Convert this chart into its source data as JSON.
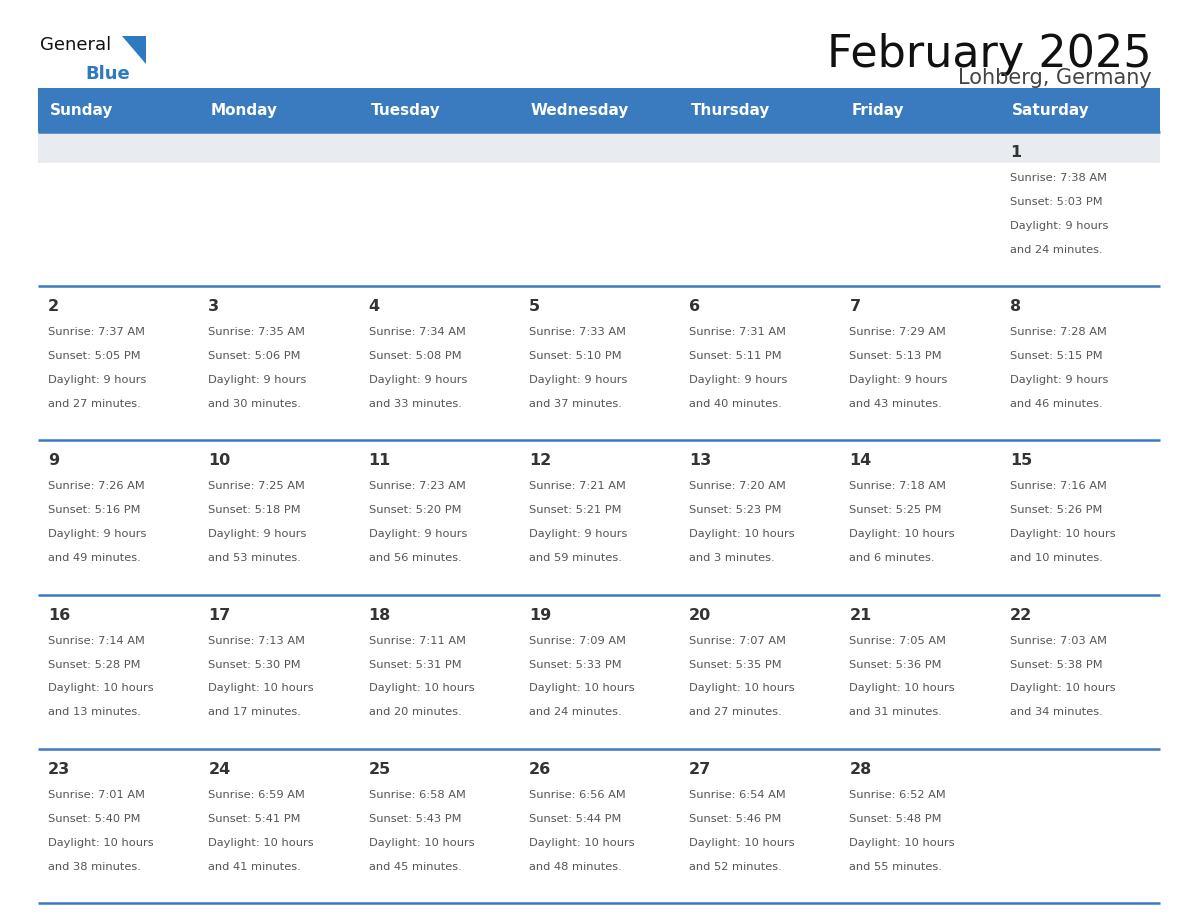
{
  "title": "February 2025",
  "subtitle": "Lohberg, Germany",
  "header_bg_color": "#3a7abf",
  "header_text_color": "#ffffff",
  "day_names": [
    "Sunday",
    "Monday",
    "Tuesday",
    "Wednesday",
    "Thursday",
    "Friday",
    "Saturday"
  ],
  "grid_line_color": "#3a7abf",
  "week1_top_bg": "#e8ecf0",
  "cell_bg_color": "#ffffff",
  "day_num_color": "#333333",
  "info_text_color": "#555555",
  "logo_general_color": "#111111",
  "logo_blue_color": "#2e7abf",
  "logo_triangle_color": "#2e7abf",
  "calendar": [
    [
      null,
      null,
      null,
      null,
      null,
      null,
      {
        "day": 1,
        "sunrise": "7:38 AM",
        "sunset": "5:03 PM",
        "daylight": "9 hours and 24 minutes."
      }
    ],
    [
      {
        "day": 2,
        "sunrise": "7:37 AM",
        "sunset": "5:05 PM",
        "daylight": "9 hours and 27 minutes."
      },
      {
        "day": 3,
        "sunrise": "7:35 AM",
        "sunset": "5:06 PM",
        "daylight": "9 hours and 30 minutes."
      },
      {
        "day": 4,
        "sunrise": "7:34 AM",
        "sunset": "5:08 PM",
        "daylight": "9 hours and 33 minutes."
      },
      {
        "day": 5,
        "sunrise": "7:33 AM",
        "sunset": "5:10 PM",
        "daylight": "9 hours and 37 minutes."
      },
      {
        "day": 6,
        "sunrise": "7:31 AM",
        "sunset": "5:11 PM",
        "daylight": "9 hours and 40 minutes."
      },
      {
        "day": 7,
        "sunrise": "7:29 AM",
        "sunset": "5:13 PM",
        "daylight": "9 hours and 43 minutes."
      },
      {
        "day": 8,
        "sunrise": "7:28 AM",
        "sunset": "5:15 PM",
        "daylight": "9 hours and 46 minutes."
      }
    ],
    [
      {
        "day": 9,
        "sunrise": "7:26 AM",
        "sunset": "5:16 PM",
        "daylight": "9 hours and 49 minutes."
      },
      {
        "day": 10,
        "sunrise": "7:25 AM",
        "sunset": "5:18 PM",
        "daylight": "9 hours and 53 minutes."
      },
      {
        "day": 11,
        "sunrise": "7:23 AM",
        "sunset": "5:20 PM",
        "daylight": "9 hours and 56 minutes."
      },
      {
        "day": 12,
        "sunrise": "7:21 AM",
        "sunset": "5:21 PM",
        "daylight": "9 hours and 59 minutes."
      },
      {
        "day": 13,
        "sunrise": "7:20 AM",
        "sunset": "5:23 PM",
        "daylight": "10 hours and 3 minutes."
      },
      {
        "day": 14,
        "sunrise": "7:18 AM",
        "sunset": "5:25 PM",
        "daylight": "10 hours and 6 minutes."
      },
      {
        "day": 15,
        "sunrise": "7:16 AM",
        "sunset": "5:26 PM",
        "daylight": "10 hours and 10 minutes."
      }
    ],
    [
      {
        "day": 16,
        "sunrise": "7:14 AM",
        "sunset": "5:28 PM",
        "daylight": "10 hours and 13 minutes."
      },
      {
        "day": 17,
        "sunrise": "7:13 AM",
        "sunset": "5:30 PM",
        "daylight": "10 hours and 17 minutes."
      },
      {
        "day": 18,
        "sunrise": "7:11 AM",
        "sunset": "5:31 PM",
        "daylight": "10 hours and 20 minutes."
      },
      {
        "day": 19,
        "sunrise": "7:09 AM",
        "sunset": "5:33 PM",
        "daylight": "10 hours and 24 minutes."
      },
      {
        "day": 20,
        "sunrise": "7:07 AM",
        "sunset": "5:35 PM",
        "daylight": "10 hours and 27 minutes."
      },
      {
        "day": 21,
        "sunrise": "7:05 AM",
        "sunset": "5:36 PM",
        "daylight": "10 hours and 31 minutes."
      },
      {
        "day": 22,
        "sunrise": "7:03 AM",
        "sunset": "5:38 PM",
        "daylight": "10 hours and 34 minutes."
      }
    ],
    [
      {
        "day": 23,
        "sunrise": "7:01 AM",
        "sunset": "5:40 PM",
        "daylight": "10 hours and 38 minutes."
      },
      {
        "day": 24,
        "sunrise": "6:59 AM",
        "sunset": "5:41 PM",
        "daylight": "10 hours and 41 minutes."
      },
      {
        "day": 25,
        "sunrise": "6:58 AM",
        "sunset": "5:43 PM",
        "daylight": "10 hours and 45 minutes."
      },
      {
        "day": 26,
        "sunrise": "6:56 AM",
        "sunset": "5:44 PM",
        "daylight": "10 hours and 48 minutes."
      },
      {
        "day": 27,
        "sunrise": "6:54 AM",
        "sunset": "5:46 PM",
        "daylight": "10 hours and 52 minutes."
      },
      {
        "day": 28,
        "sunrise": "6:52 AM",
        "sunset": "5:48 PM",
        "daylight": "10 hours and 55 minutes."
      },
      null
    ]
  ]
}
